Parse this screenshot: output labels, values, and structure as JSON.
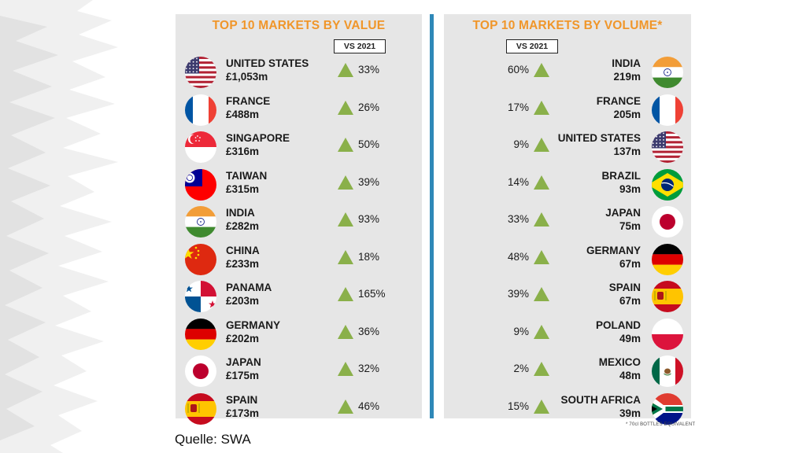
{
  "source_label": "Quelle: SWA",
  "footnote": "* 70cl BOTTLES EQUIVALENT",
  "chart_data": [
    {
      "type": "table",
      "title": "TOP 10 MARKETS BY VALUE",
      "comparison_label": "VS 2021",
      "columns": [
        "country",
        "value",
        "change_vs_2021"
      ],
      "rows": [
        {
          "country": "UNITED STATES",
          "amount": "£1,053m",
          "change": "33%",
          "flag": "us"
        },
        {
          "country": "FRANCE",
          "amount": "£488m",
          "change": "26%",
          "flag": "fr"
        },
        {
          "country": "SINGAPORE",
          "amount": "£316m",
          "change": "50%",
          "flag": "sg"
        },
        {
          "country": "TAIWAN",
          "amount": "£315m",
          "change": "39%",
          "flag": "tw"
        },
        {
          "country": "INDIA",
          "amount": "£282m",
          "change": "93%",
          "flag": "in"
        },
        {
          "country": "CHINA",
          "amount": "£233m",
          "change": "18%",
          "flag": "cn"
        },
        {
          "country": "PANAMA",
          "amount": "£203m",
          "change": "165%",
          "flag": "pa"
        },
        {
          "country": "GERMANY",
          "amount": "£202m",
          "change": "36%",
          "flag": "de"
        },
        {
          "country": "JAPAN",
          "amount": "£175m",
          "change": "32%",
          "flag": "jp"
        },
        {
          "country": "SPAIN",
          "amount": "£173m",
          "change": "46%",
          "flag": "es"
        }
      ]
    },
    {
      "type": "table",
      "title": "TOP 10 MARKETS BY VOLUME*",
      "comparison_label": "VS 2021",
      "columns": [
        "country",
        "volume",
        "change_vs_2021"
      ],
      "rows": [
        {
          "country": "INDIA",
          "amount": "219m",
          "change": "60%",
          "flag": "in"
        },
        {
          "country": "FRANCE",
          "amount": "205m",
          "change": "17%",
          "flag": "fr"
        },
        {
          "country": "UNITED STATES",
          "amount": "137m",
          "change": "9%",
          "flag": "us"
        },
        {
          "country": "BRAZIL",
          "amount": "93m",
          "change": "14%",
          "flag": "br"
        },
        {
          "country": "JAPAN",
          "amount": "75m",
          "change": "33%",
          "flag": "jp"
        },
        {
          "country": "GERMANY",
          "amount": "67m",
          "change": "48%",
          "flag": "de"
        },
        {
          "country": "SPAIN",
          "amount": "67m",
          "change": "39%",
          "flag": "es"
        },
        {
          "country": "POLAND",
          "amount": "49m",
          "change": "9%",
          "flag": "pl"
        },
        {
          "country": "MEXICO",
          "amount": "48m",
          "change": "2%",
          "flag": "mx"
        },
        {
          "country": "SOUTH AFRICA",
          "amount": "39m",
          "change": "15%",
          "flag": "za"
        }
      ]
    }
  ],
  "colors": {
    "title": "#f0962a",
    "up_arrow": "#8ab04a",
    "divider": "#2e88b8",
    "panel": "#e6e6e6"
  }
}
